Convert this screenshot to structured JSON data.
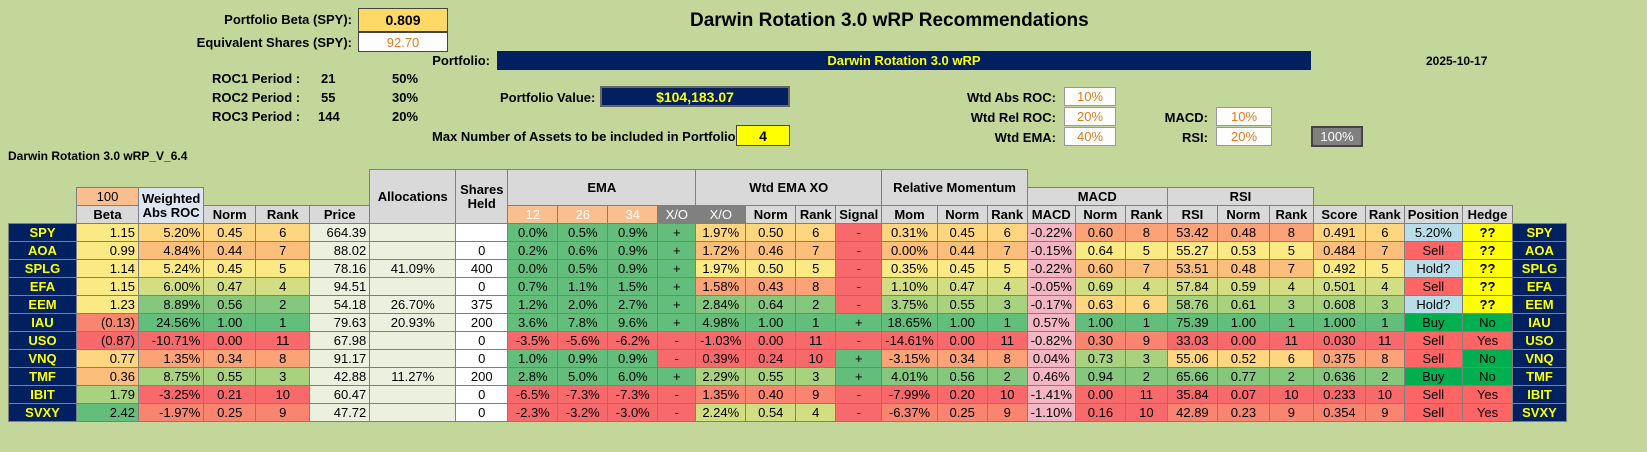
{
  "title": "Darwin Rotation 3.0 wRP Recommendations",
  "portfolio_beta_label": "Portfolio Beta (SPY):",
  "portfolio_beta": "0.809",
  "equiv_shares_label": "Equivalent Shares (SPY):",
  "equiv_shares": "92.70",
  "portfolio_label": "Portfolio:",
  "portfolio_name": "Darwin Rotation 3.0 wRP",
  "date": "2025-10-17",
  "roc": [
    {
      "label": "ROC1 Period :",
      "period": "21",
      "weight": "50%"
    },
    {
      "label": "ROC2 Period :",
      "period": "55",
      "weight": "30%"
    },
    {
      "label": "ROC3 Period :",
      "period": "144",
      "weight": "20%"
    }
  ],
  "portfolio_value_label": "Portfolio Value:",
  "portfolio_value": "$104,183.07",
  "max_assets_label": "Max Number of Assets to be included in Portfolio:",
  "max_assets": "4",
  "weights": {
    "abs_roc_label": "Wtd Abs ROC:",
    "abs_roc": "10%",
    "rel_roc_label": "Wtd Rel ROC:",
    "rel_roc": "20%",
    "ema_label": "Wtd EMA:",
    "ema": "40%",
    "macd_label": "MACD:",
    "macd": "10%",
    "rsi_label": "RSI:",
    "rsi": "20%",
    "total": "100%"
  },
  "version": "Darwin Rotation 3.0 wRP_V_6.4",
  "headers": {
    "beta_top": "100",
    "beta": "Beta",
    "wabs": "Weighted Abs ROC",
    "norm": "Norm",
    "rank": "Rank",
    "price": "Price",
    "alloc": "Allocations",
    "shares": "Shares Held",
    "ema": "EMA",
    "ema12": "12",
    "ema26": "26",
    "ema34": "34",
    "xo": "X/O",
    "wtdema": "Wtd EMA XO",
    "xo2": "X/O",
    "signal": "Signal",
    "relmom": "Relative Momentum",
    "mom": "Mom",
    "macd": "MACD",
    "rsi": "RSI",
    "score": "Score",
    "position": "Position",
    "hedge": "Hedge"
  },
  "rows": [
    {
      "t": "SPY",
      "beta": "1.15",
      "wabs": "5.20%",
      "norm": "0.45",
      "rank": "6",
      "price": "664.39",
      "alloc": "",
      "shares": "",
      "e12": "0.0%",
      "e26": "0.5%",
      "e34": "0.9%",
      "xo": "+",
      "wx": "1.97%",
      "wn": "0.50",
      "wr": "6",
      "sig": "-",
      "mom": "0.31%",
      "mn": "0.45",
      "mr": "6",
      "macd": "-0.22%",
      "macdn": "0.60",
      "macdr": "8",
      "rsi": "53.42",
      "rsin": "0.48",
      "rsir": "8",
      "score": "0.491",
      "sr": "6",
      "pos": "5.20%",
      "hedge": "??"
    },
    {
      "t": "AOA",
      "beta": "0.99",
      "wabs": "4.84%",
      "norm": "0.44",
      "rank": "7",
      "price": "88.02",
      "alloc": "",
      "shares": "0",
      "e12": "0.2%",
      "e26": "0.6%",
      "e34": "0.9%",
      "xo": "+",
      "wx": "1.72%",
      "wn": "0.46",
      "wr": "7",
      "sig": "-",
      "mom": "0.00%",
      "mn": "0.44",
      "mr": "7",
      "macd": "-0.15%",
      "macdn": "0.64",
      "macdr": "5",
      "rsi": "55.27",
      "rsin": "0.53",
      "rsir": "5",
      "score": "0.484",
      "sr": "7",
      "pos": "Sell",
      "hedge": "??"
    },
    {
      "t": "SPLG",
      "beta": "1.14",
      "wabs": "5.24%",
      "norm": "0.45",
      "rank": "5",
      "price": "78.16",
      "alloc": "41.09%",
      "shares": "400",
      "e12": "0.0%",
      "e26": "0.5%",
      "e34": "0.9%",
      "xo": "+",
      "wx": "1.97%",
      "wn": "0.50",
      "wr": "5",
      "sig": "-",
      "mom": "0.35%",
      "mn": "0.45",
      "mr": "5",
      "macd": "-0.22%",
      "macdn": "0.60",
      "macdr": "7",
      "rsi": "53.51",
      "rsin": "0.48",
      "rsir": "7",
      "score": "0.492",
      "sr": "5",
      "pos": "Hold?",
      "hedge": "??"
    },
    {
      "t": "EFA",
      "beta": "1.15",
      "wabs": "6.00%",
      "norm": "0.47",
      "rank": "4",
      "price": "94.51",
      "alloc": "",
      "shares": "0",
      "e12": "0.7%",
      "e26": "1.1%",
      "e34": "1.5%",
      "xo": "+",
      "wx": "1.58%",
      "wn": "0.43",
      "wr": "8",
      "sig": "-",
      "mom": "1.10%",
      "mn": "0.47",
      "mr": "4",
      "macd": "-0.05%",
      "macdn": "0.69",
      "macdr": "4",
      "rsi": "57.84",
      "rsin": "0.59",
      "rsir": "4",
      "score": "0.501",
      "sr": "4",
      "pos": "Sell",
      "hedge": "??"
    },
    {
      "t": "EEM",
      "beta": "1.23",
      "wabs": "8.89%",
      "norm": "0.56",
      "rank": "2",
      "price": "54.18",
      "alloc": "26.70%",
      "shares": "375",
      "e12": "1.2%",
      "e26": "2.0%",
      "e34": "2.7%",
      "xo": "+",
      "wx": "2.84%",
      "wn": "0.64",
      "wr": "2",
      "sig": "-",
      "mom": "3.75%",
      "mn": "0.55",
      "mr": "3",
      "macd": "-0.17%",
      "macdn": "0.63",
      "macdr": "6",
      "rsi": "58.76",
      "rsin": "0.61",
      "rsir": "3",
      "score": "0.608",
      "sr": "3",
      "pos": "Hold?",
      "hedge": "??"
    },
    {
      "t": "IAU",
      "beta": "(0.13)",
      "wabs": "24.56%",
      "norm": "1.00",
      "rank": "1",
      "price": "79.63",
      "alloc": "20.93%",
      "shares": "200",
      "e12": "3.6%",
      "e26": "7.8%",
      "e34": "9.6%",
      "xo": "+",
      "wx": "4.98%",
      "wn": "1.00",
      "wr": "1",
      "sig": "+",
      "mom": "18.65%",
      "mn": "1.00",
      "mr": "1",
      "macd": "0.57%",
      "macdn": "1.00",
      "macdr": "1",
      "rsi": "75.39",
      "rsin": "1.00",
      "rsir": "1",
      "score": "1.000",
      "sr": "1",
      "pos": "Buy",
      "hedge": "No"
    },
    {
      "t": "USO",
      "beta": "(0.87)",
      "wabs": "-10.71%",
      "norm": "0.00",
      "rank": "11",
      "price": "67.98",
      "alloc": "",
      "shares": "0",
      "e12": "-3.5%",
      "e26": "-5.6%",
      "e34": "-6.2%",
      "xo": "-",
      "wx": "-1.03%",
      "wn": "0.00",
      "wr": "11",
      "sig": "-",
      "mom": "-14.61%",
      "mn": "0.00",
      "mr": "11",
      "macd": "-0.82%",
      "macdn": "0.30",
      "macdr": "9",
      "rsi": "33.03",
      "rsin": "0.00",
      "rsir": "11",
      "score": "0.030",
      "sr": "11",
      "pos": "Sell",
      "hedge": "Yes"
    },
    {
      "t": "VNQ",
      "beta": "0.77",
      "wabs": "1.35%",
      "norm": "0.34",
      "rank": "8",
      "price": "91.17",
      "alloc": "",
      "shares": "0",
      "e12": "1.0%",
      "e26": "0.9%",
      "e34": "0.9%",
      "xo": "-",
      "wx": "0.39%",
      "wn": "0.24",
      "wr": "10",
      "sig": "+",
      "mom": "-3.15%",
      "mn": "0.34",
      "mr": "8",
      "macd": "0.04%",
      "macdn": "0.73",
      "macdr": "3",
      "rsi": "55.06",
      "rsin": "0.52",
      "rsir": "6",
      "score": "0.375",
      "sr": "8",
      "pos": "Sell",
      "hedge": "No"
    },
    {
      "t": "TMF",
      "beta": "0.36",
      "wabs": "8.75%",
      "norm": "0.55",
      "rank": "3",
      "price": "42.88",
      "alloc": "11.27%",
      "shares": "200",
      "e12": "2.8%",
      "e26": "5.0%",
      "e34": "6.0%",
      "xo": "+",
      "wx": "2.29%",
      "wn": "0.55",
      "wr": "3",
      "sig": "+",
      "mom": "4.01%",
      "mn": "0.56",
      "mr": "2",
      "macd": "0.46%",
      "macdn": "0.94",
      "macdr": "2",
      "rsi": "65.66",
      "rsin": "0.77",
      "rsir": "2",
      "score": "0.636",
      "sr": "2",
      "pos": "Buy",
      "hedge": "No"
    },
    {
      "t": "IBIT",
      "beta": "1.79",
      "wabs": "-3.25%",
      "norm": "0.21",
      "rank": "10",
      "price": "60.47",
      "alloc": "",
      "shares": "0",
      "e12": "-6.5%",
      "e26": "-7.3%",
      "e34": "-7.3%",
      "xo": "-",
      "wx": "1.35%",
      "wn": "0.40",
      "wr": "9",
      "sig": "-",
      "mom": "-7.99%",
      "mn": "0.20",
      "mr": "10",
      "macd": "-1.41%",
      "macdn": "0.00",
      "macdr": "11",
      "rsi": "35.84",
      "rsin": "0.07",
      "rsir": "10",
      "score": "0.233",
      "sr": "10",
      "pos": "Sell",
      "hedge": "Yes"
    },
    {
      "t": "SVXY",
      "beta": "2.42",
      "wabs": "-1.97%",
      "norm": "0.25",
      "rank": "9",
      "price": "47.72",
      "alloc": "",
      "shares": "0",
      "e12": "-2.3%",
      "e26": "-3.2%",
      "e34": "-3.0%",
      "xo": "-",
      "wx": "2.24%",
      "wn": "0.54",
      "wr": "4",
      "sig": "-",
      "mom": "-6.37%",
      "mn": "0.25",
      "mr": "9",
      "macd": "-1.10%",
      "macdn": "0.16",
      "macdr": "10",
      "rsi": "42.89",
      "rsin": "0.23",
      "rsir": "9",
      "score": "0.354",
      "sr": "9",
      "pos": "Sell",
      "hedge": "Yes"
    }
  ]
}
